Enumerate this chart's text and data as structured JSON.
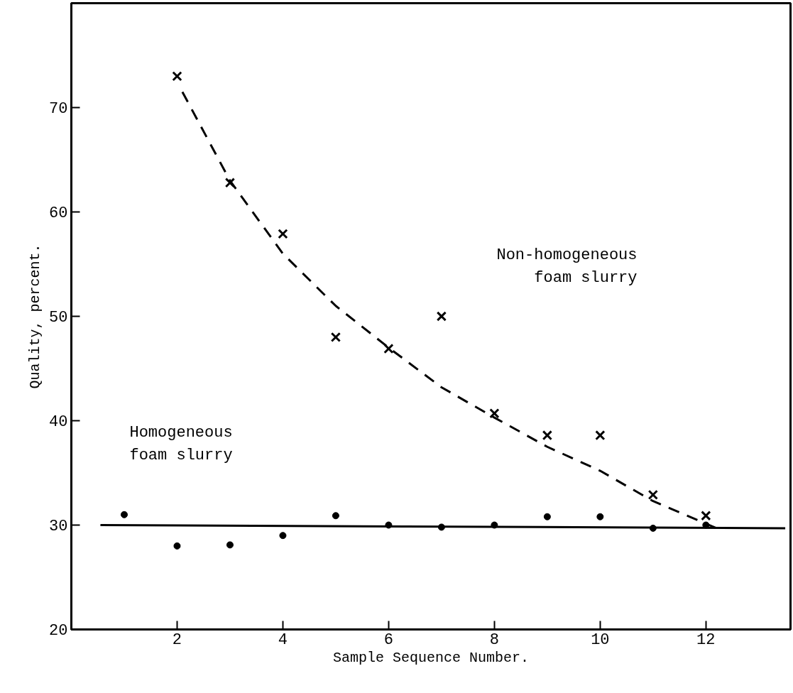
{
  "chart_data": {
    "type": "scatter",
    "xlabel": "Sample Sequence Number.",
    "ylabel": "Quality, percent.",
    "xlim": [
      0,
      13.6
    ],
    "ylim": [
      20,
      80
    ],
    "xticks": [
      2,
      4,
      6,
      8,
      10,
      12
    ],
    "yticks": [
      20,
      30,
      40,
      50,
      60,
      70
    ],
    "grid": false,
    "annotations": [
      "Non-homogeneous\nfoam slurry",
      "Homogeneous\nfoam slurry"
    ],
    "series": [
      {
        "marker": "cross",
        "color": "#000000",
        "x": [
          2,
          3,
          4,
          5,
          6,
          7,
          8,
          9,
          10,
          11,
          12
        ],
        "values": [
          73,
          62.8,
          57.9,
          48,
          46.9,
          50,
          40.7,
          38.6,
          38.6,
          32.9,
          30.9
        ]
      },
      {
        "marker": "circle",
        "color": "#000000",
        "x": [
          1,
          2,
          3,
          4,
          5,
          6,
          7,
          8,
          9,
          10,
          11,
          12
        ],
        "values": [
          31,
          28,
          28.1,
          29,
          30.9,
          30,
          29.8,
          30,
          30.8,
          30.8,
          29.7,
          30
        ]
      },
      {
        "type": "line",
        "line_style": "dashed",
        "marker": "none",
        "color": "#000000",
        "x": [
          2.1,
          3,
          4,
          5,
          6,
          7,
          8,
          9,
          10,
          11,
          12.2
        ],
        "values": [
          71.5,
          63,
          56,
          51,
          47,
          43.2,
          40.3,
          37.5,
          35.2,
          32.3,
          29.7
        ]
      },
      {
        "type": "line",
        "line_style": "solid",
        "marker": "none",
        "color": "#000000",
        "x": [
          0.55,
          13.5
        ],
        "values": [
          30,
          29.7
        ]
      }
    ]
  }
}
